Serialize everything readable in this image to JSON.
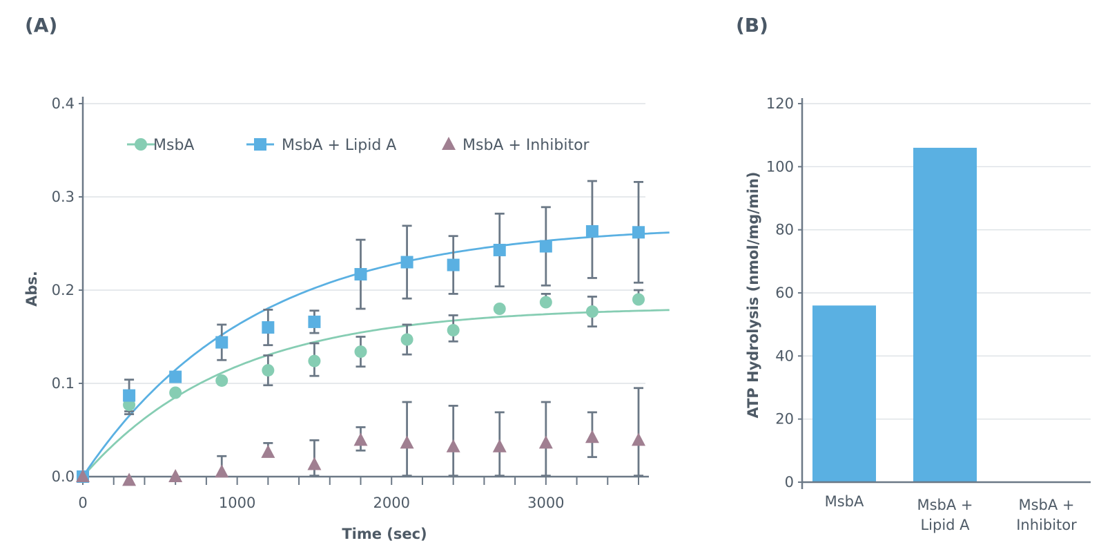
{
  "panels": {
    "a_label": "(A)",
    "b_label": "(B)"
  },
  "chart_data": [
    {
      "type": "scatter",
      "title": "",
      "xlabel": "Time (sec)",
      "ylabel": "Abs.",
      "xlim": [
        0,
        3600
      ],
      "ylim": [
        0,
        0.4
      ],
      "x_ticks": [
        "0",
        "1000",
        "2000",
        "3000"
      ],
      "y_ticks": [
        "0.0",
        "0.1",
        "0.2",
        "0.3",
        "0.4"
      ],
      "legend_position": "top",
      "x": [
        0,
        300,
        600,
        900,
        1200,
        1500,
        1800,
        2100,
        2400,
        2700,
        3000,
        3300,
        3600
      ],
      "series": [
        {
          "name": "MsbA",
          "marker": "circle",
          "color": "#86cdb3",
          "values": [
            0,
            0.077,
            0.09,
            0.103,
            0.114,
            0.124,
            0.134,
            0.147,
            0.157,
            0.18,
            0.187,
            0.177,
            0.19
          ],
          "err_high": [
            null,
            0.087,
            null,
            null,
            0.13,
            0.143,
            0.15,
            0.163,
            0.173,
            null,
            0.196,
            0.193,
            0.2
          ],
          "err_low": [
            null,
            0.067,
            null,
            null,
            0.098,
            0.108,
            0.118,
            0.131,
            0.145,
            null,
            null,
            0.161,
            null
          ],
          "fit": {
            "type": "exponential-rise",
            "ymax": 0.182,
            "rate": 0.00105
          }
        },
        {
          "name": "MsbA + Lipid A",
          "marker": "square",
          "color": "#5ab0e2",
          "values": [
            0,
            0.087,
            0.107,
            0.144,
            0.16,
            0.166,
            0.217,
            0.23,
            0.227,
            0.243,
            0.247,
            0.263,
            0.262
          ],
          "err_high": [
            null,
            0.104,
            null,
            0.163,
            0.179,
            0.178,
            0.254,
            0.269,
            0.258,
            0.282,
            0.289,
            0.317,
            0.316
          ],
          "err_low": [
            null,
            0.07,
            null,
            0.125,
            0.141,
            0.154,
            0.18,
            0.191,
            0.196,
            0.204,
            0.205,
            0.213,
            0.208
          ],
          "fit": {
            "type": "exponential-rise",
            "ymax": 0.27,
            "rate": 0.00092
          }
        },
        {
          "name": "MsbA + Inhibitor",
          "marker": "triangle",
          "color": "#a07f91",
          "values": [
            0,
            -0.004,
            0,
            0.005,
            0.026,
            0.013,
            0.039,
            0.036,
            0.032,
            0.032,
            0.036,
            0.042,
            0.039
          ],
          "err_high": [
            null,
            null,
            null,
            0.022,
            0.036,
            0.039,
            0.053,
            0.08,
            0.076,
            0.069,
            0.08,
            0.069,
            0.095
          ],
          "err_low": [
            null,
            null,
            null,
            0.001,
            0.022,
            0.001,
            0.028,
            0.001,
            0.001,
            0.001,
            0.001,
            0.021,
            0.001
          ]
        }
      ]
    },
    {
      "type": "bar",
      "title": "",
      "xlabel": "",
      "ylabel": "ATP Hydrolysis (nmol/mg/min)",
      "ylim": [
        0,
        120
      ],
      "y_ticks": [
        "0",
        "20",
        "40",
        "60",
        "80",
        "100",
        "120"
      ],
      "categories": [
        [
          "MsbA"
        ],
        [
          "MsbA +",
          "Lipid A"
        ],
        [
          "MsbA +",
          "Inhibitor"
        ]
      ],
      "values": [
        56,
        106,
        0
      ],
      "color": "#5ab0e2"
    }
  ]
}
